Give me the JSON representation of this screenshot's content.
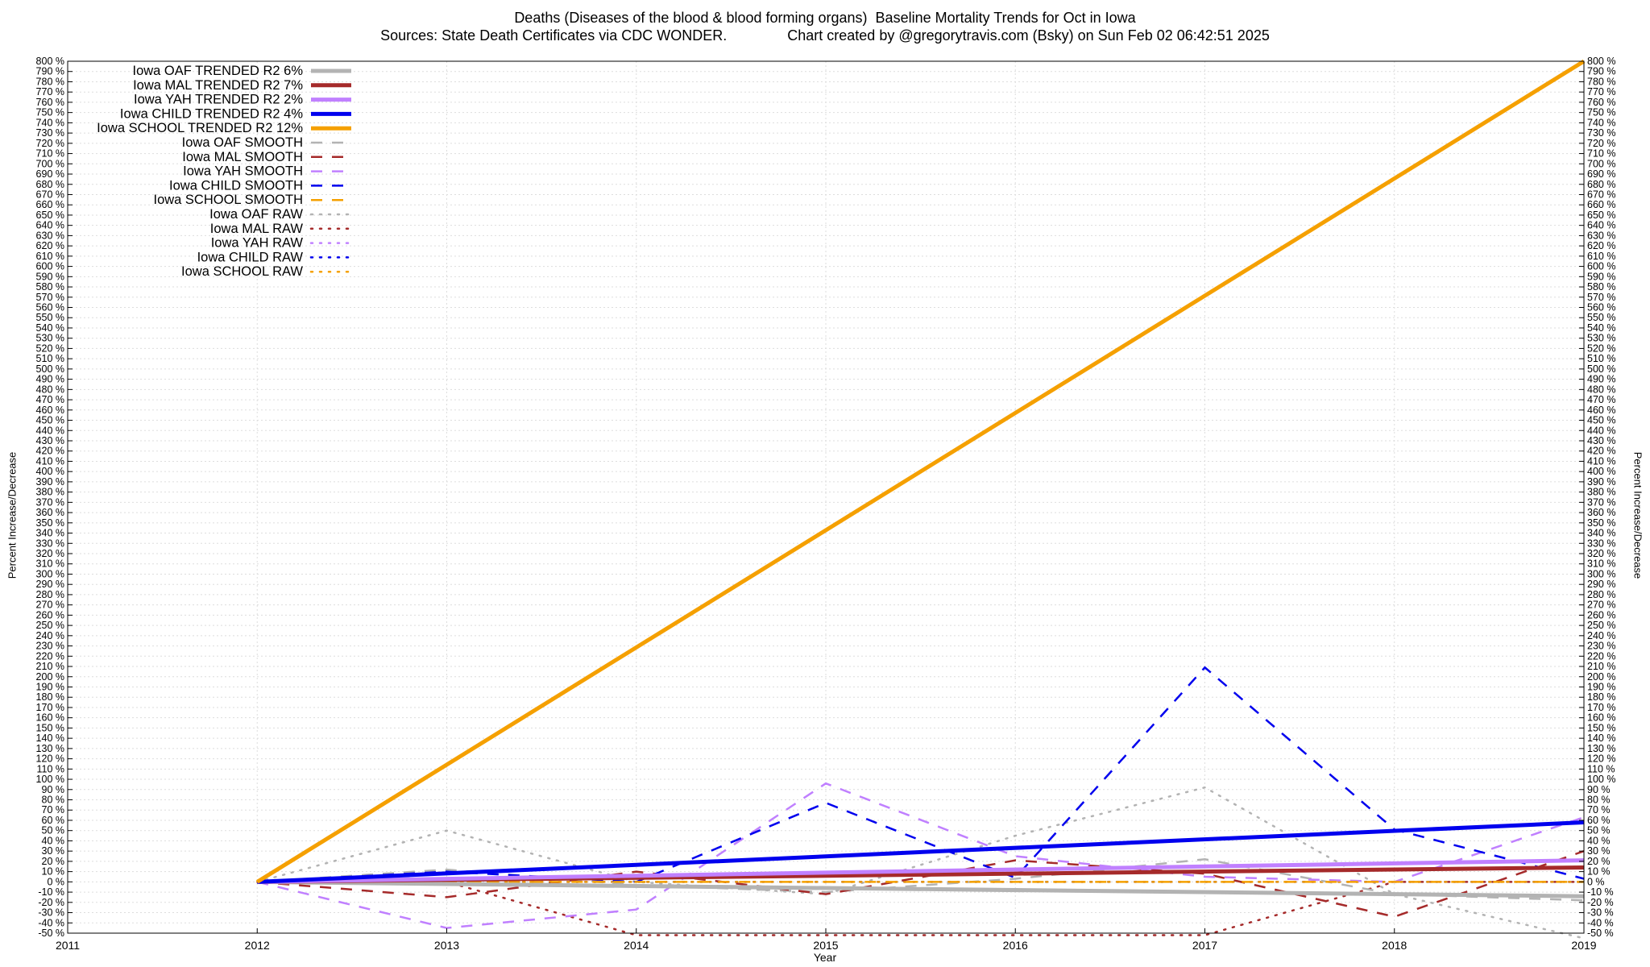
{
  "title_line1": "Deaths (Diseases of the blood & blood forming organs)  Baseline Mortality Trends for Oct in Iowa",
  "title_line2": "Sources: State Death Certificates via CDC WONDER.               Chart created by @gregorytravis.com (Bsky) on Sun Feb 02 06:42:51 2025",
  "chart_data": {
    "type": "line",
    "title": "Deaths (Diseases of the blood & blood forming organs)  Baseline Mortality Trends for Oct in Iowa",
    "subtitle": "Sources: State Death Certificates via CDC WONDER.               Chart created by @gregorytravis.com (Bsky) on Sun Feb 02 06:42:51 2025",
    "xlabel": "Year",
    "ylabel": "Percent Increase/Decrease",
    "y2label": "Percent Increase/Decrease",
    "xlim": [
      2011,
      2019
    ],
    "ylim": [
      -50,
      800
    ],
    "x_ticks": [
      "2011",
      "2012",
      "2013",
      "2014",
      "2015",
      "2016",
      "2017",
      "2018",
      "2019"
    ],
    "y_tick_step": 10,
    "y_tick_suffix": " %",
    "grid": true,
    "legend_position": "top-left",
    "series": [
      {
        "name": "Iowa OAF TRENDED R2  6%",
        "style": "trend",
        "color": "#b3b3b3",
        "x": [
          2012,
          2019
        ],
        "y": [
          0,
          -14
        ]
      },
      {
        "name": "Iowa MAL TRENDED R2  7%",
        "style": "trend",
        "color": "#a52a2a",
        "x": [
          2012,
          2019
        ],
        "y": [
          0,
          14
        ]
      },
      {
        "name": "Iowa YAH TRENDED R2  2%",
        "style": "trend",
        "color": "#c080ff",
        "x": [
          2012,
          2019
        ],
        "y": [
          0,
          21
        ]
      },
      {
        "name": "Iowa CHILD TRENDED R2  4%",
        "style": "trend",
        "color": "#0000ee",
        "x": [
          2012,
          2019
        ],
        "y": [
          0,
          58
        ]
      },
      {
        "name": "Iowa SCHOOL TRENDED R2  12%",
        "style": "trend",
        "color": "#f5a000",
        "x": [
          2012,
          2019
        ],
        "y": [
          0,
          800
        ]
      },
      {
        "name": "Iowa OAF SMOOTH",
        "style": "smooth",
        "color": "#b3b3b3",
        "x": [
          2012,
          2013,
          2014,
          2015,
          2016,
          2017,
          2018,
          2019
        ],
        "y": [
          0,
          12,
          -3,
          -10,
          3,
          22,
          -12,
          -18
        ]
      },
      {
        "name": "Iowa MAL SMOOTH",
        "style": "smooth",
        "color": "#a52a2a",
        "x": [
          2012,
          2013,
          2014,
          2015,
          2016,
          2017,
          2018,
          2019
        ],
        "y": [
          0,
          -15,
          10,
          -12,
          21,
          8,
          -34,
          30
        ]
      },
      {
        "name": "Iowa YAH SMOOTH",
        "style": "smooth",
        "color": "#c080ff",
        "x": [
          2012,
          2013,
          2014,
          2015,
          2016,
          2017,
          2018,
          2019
        ],
        "y": [
          0,
          -45,
          -27,
          96,
          25,
          5,
          0,
          63
        ]
      },
      {
        "name": "Iowa CHILD SMOOTH",
        "style": "smooth",
        "color": "#0000ee",
        "x": [
          2012,
          2013,
          2014,
          2015,
          2016,
          2017,
          2018,
          2019
        ],
        "y": [
          0,
          10,
          0,
          77,
          4,
          209,
          51,
          3
        ]
      },
      {
        "name": "Iowa SCHOOL SMOOTH",
        "style": "smooth",
        "color": "#f5a000",
        "x": [
          2012,
          2013,
          2014,
          2015,
          2016,
          2017,
          2018,
          2019
        ],
        "y": [
          0,
          0,
          0,
          0,
          0,
          0,
          0,
          0
        ]
      },
      {
        "name": "Iowa OAF RAW",
        "style": "raw",
        "color": "#b3b3b3",
        "x": [
          2012,
          2013,
          2014,
          2015,
          2016,
          2017,
          2018,
          2019
        ],
        "y": [
          0,
          50,
          0,
          -12,
          45,
          92,
          -12,
          -55
        ]
      },
      {
        "name": "Iowa MAL RAW",
        "style": "raw",
        "color": "#a52a2a",
        "x": [
          2012,
          2013,
          2014,
          2015,
          2016,
          2017,
          2018,
          2019
        ],
        "y": [
          0,
          0,
          -52,
          -52,
          -52,
          -52,
          0,
          0
        ]
      },
      {
        "name": "Iowa YAH RAW",
        "style": "raw",
        "color": "#c080ff",
        "x": [
          2012,
          2013,
          2014,
          2015,
          2016,
          2017,
          2018,
          2019
        ],
        "y": [
          0,
          0,
          0,
          0,
          0,
          0,
          0,
          0
        ]
      },
      {
        "name": "Iowa CHILD RAW",
        "style": "raw",
        "color": "#0000ee",
        "x": [
          2012,
          2013,
          2014,
          2015,
          2016,
          2017,
          2018,
          2019
        ],
        "y": [
          0,
          0,
          0,
          0,
          0,
          0,
          0,
          0
        ]
      },
      {
        "name": "Iowa SCHOOL RAW",
        "style": "raw",
        "color": "#f5a000",
        "x": [
          2012,
          2013,
          2014,
          2015,
          2016,
          2017,
          2018,
          2019
        ],
        "y": [
          0,
          0,
          0,
          0,
          0,
          0,
          0,
          0
        ]
      }
    ]
  }
}
